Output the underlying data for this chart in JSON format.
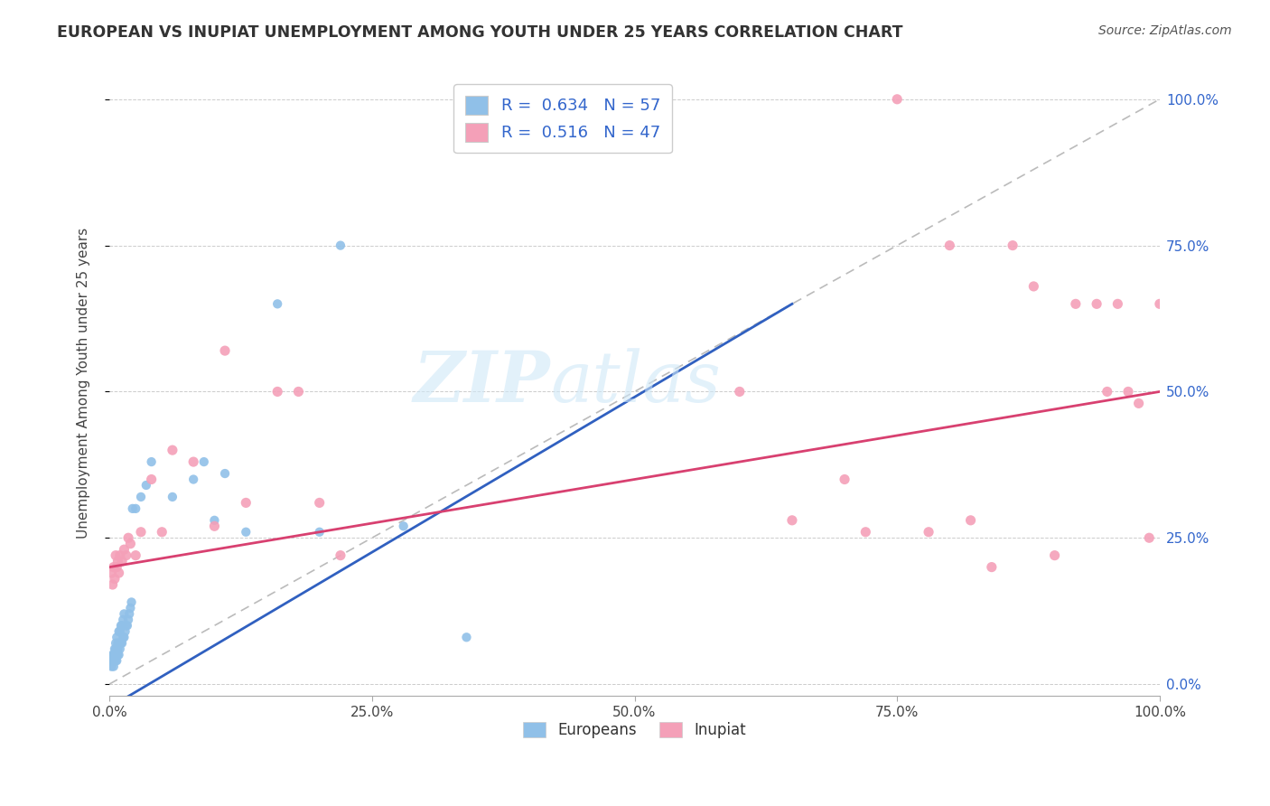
{
  "title": "EUROPEAN VS INUPIAT UNEMPLOYMENT AMONG YOUTH UNDER 25 YEARS CORRELATION CHART",
  "source": "Source: ZipAtlas.com",
  "ylabel": "Unemployment Among Youth under 25 years",
  "xlim": [
    0,
    1.0
  ],
  "ylim": [
    -0.02,
    1.05
  ],
  "xticks": [
    0.0,
    0.25,
    0.5,
    0.75,
    1.0
  ],
  "yticks": [
    0.0,
    0.25,
    0.5,
    0.75,
    1.0
  ],
  "xticklabels": [
    "0.0%",
    "25.0%",
    "50.0%",
    "75.0%",
    "100.0%"
  ],
  "yticklabels": [
    "0.0%",
    "25.0%",
    "50.0%",
    "75.0%",
    "100.0%"
  ],
  "european_color": "#90C0E8",
  "inupiat_color": "#F4A0B8",
  "european_line_color": "#3060C0",
  "inupiat_line_color": "#D84070",
  "diagonal_color": "#BBBBBB",
  "legend_R1": "0.634",
  "legend_N1": "57",
  "legend_R2": "0.516",
  "legend_N2": "47",
  "legend_label1": "Europeans",
  "legend_label2": "Inupiat",
  "watermark_part1": "ZIP",
  "watermark_part2": "atlas",
  "european_trend_x": [
    0.0,
    0.65
  ],
  "european_trend_y": [
    -0.04,
    0.65
  ],
  "inupiat_trend_x": [
    0.0,
    1.0
  ],
  "inupiat_trend_y": [
    0.2,
    0.5
  ],
  "european_x": [
    0.002,
    0.003,
    0.003,
    0.004,
    0.004,
    0.004,
    0.005,
    0.005,
    0.005,
    0.006,
    0.006,
    0.006,
    0.006,
    0.007,
    0.007,
    0.007,
    0.007,
    0.008,
    0.008,
    0.008,
    0.009,
    0.009,
    0.009,
    0.01,
    0.01,
    0.01,
    0.011,
    0.011,
    0.012,
    0.012,
    0.013,
    0.013,
    0.014,
    0.014,
    0.015,
    0.016,
    0.017,
    0.018,
    0.019,
    0.02,
    0.021,
    0.022,
    0.025,
    0.03,
    0.035,
    0.04,
    0.06,
    0.08,
    0.09,
    0.1,
    0.11,
    0.13,
    0.16,
    0.2,
    0.22,
    0.28,
    0.34
  ],
  "european_y": [
    0.03,
    0.04,
    0.05,
    0.03,
    0.04,
    0.05,
    0.04,
    0.05,
    0.06,
    0.04,
    0.05,
    0.06,
    0.07,
    0.04,
    0.05,
    0.06,
    0.08,
    0.05,
    0.06,
    0.07,
    0.05,
    0.07,
    0.09,
    0.06,
    0.07,
    0.09,
    0.07,
    0.1,
    0.07,
    0.1,
    0.08,
    0.11,
    0.08,
    0.12,
    0.09,
    0.1,
    0.1,
    0.11,
    0.12,
    0.13,
    0.14,
    0.3,
    0.3,
    0.32,
    0.34,
    0.38,
    0.32,
    0.35,
    0.38,
    0.28,
    0.36,
    0.26,
    0.65,
    0.26,
    0.75,
    0.27,
    0.08
  ],
  "inupiat_x": [
    0.002,
    0.003,
    0.004,
    0.005,
    0.006,
    0.007,
    0.008,
    0.009,
    0.01,
    0.012,
    0.014,
    0.016,
    0.018,
    0.02,
    0.025,
    0.03,
    0.04,
    0.05,
    0.06,
    0.08,
    0.1,
    0.11,
    0.13,
    0.16,
    0.18,
    0.2,
    0.22,
    0.6,
    0.65,
    0.7,
    0.72,
    0.75,
    0.78,
    0.8,
    0.82,
    0.84,
    0.86,
    0.88,
    0.9,
    0.92,
    0.94,
    0.95,
    0.96,
    0.97,
    0.98,
    0.99,
    1.0
  ],
  "inupiat_y": [
    0.19,
    0.17,
    0.2,
    0.18,
    0.22,
    0.2,
    0.21,
    0.19,
    0.22,
    0.21,
    0.23,
    0.22,
    0.25,
    0.24,
    0.22,
    0.26,
    0.35,
    0.26,
    0.4,
    0.38,
    0.27,
    0.57,
    0.31,
    0.5,
    0.5,
    0.31,
    0.22,
    0.5,
    0.28,
    0.35,
    0.26,
    1.0,
    0.26,
    0.75,
    0.28,
    0.2,
    0.75,
    0.68,
    0.22,
    0.65,
    0.65,
    0.5,
    0.65,
    0.5,
    0.48,
    0.25,
    0.65
  ]
}
